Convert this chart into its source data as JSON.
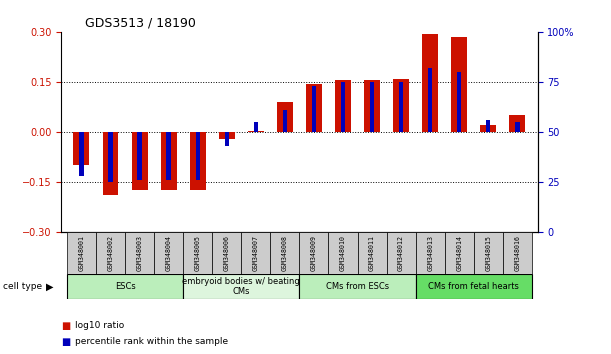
{
  "title": "GDS3513 / 18190",
  "samples": [
    "GSM348001",
    "GSM348002",
    "GSM348003",
    "GSM348004",
    "GSM348005",
    "GSM348006",
    "GSM348007",
    "GSM348008",
    "GSM348009",
    "GSM348010",
    "GSM348011",
    "GSM348012",
    "GSM348013",
    "GSM348014",
    "GSM348015",
    "GSM348016"
  ],
  "log10_ratio": [
    -0.1,
    -0.19,
    -0.175,
    -0.175,
    -0.175,
    -0.02,
    0.003,
    0.09,
    0.145,
    0.155,
    0.155,
    0.16,
    0.295,
    0.285,
    0.02,
    0.05
  ],
  "percentile_rank": [
    28,
    25,
    26,
    26,
    26,
    43,
    55,
    61,
    73,
    75,
    75,
    75,
    82,
    80,
    56,
    55
  ],
  "cell_types": [
    {
      "label": "ESCs",
      "start": 0,
      "end": 4,
      "color": "#bbeebb"
    },
    {
      "label": "embryoid bodies w/ beating\nCMs",
      "start": 4,
      "end": 8,
      "color": "#ddf5dd"
    },
    {
      "label": "CMs from ESCs",
      "start": 8,
      "end": 12,
      "color": "#bbeebb"
    },
    {
      "label": "CMs from fetal hearts",
      "start": 12,
      "end": 16,
      "color": "#66dd66"
    }
  ],
  "bar_color_red": "#cc1100",
  "bar_color_blue": "#0000bb",
  "ylim_left": [
    -0.3,
    0.3
  ],
  "ylim_right": [
    0,
    100
  ],
  "yticks_left": [
    -0.3,
    -0.15,
    0,
    0.15,
    0.3
  ],
  "yticks_right": [
    0,
    25,
    50,
    75,
    100
  ],
  "red_bar_width": 0.55,
  "blue_bar_width": 0.15,
  "background_color": "#ffffff"
}
